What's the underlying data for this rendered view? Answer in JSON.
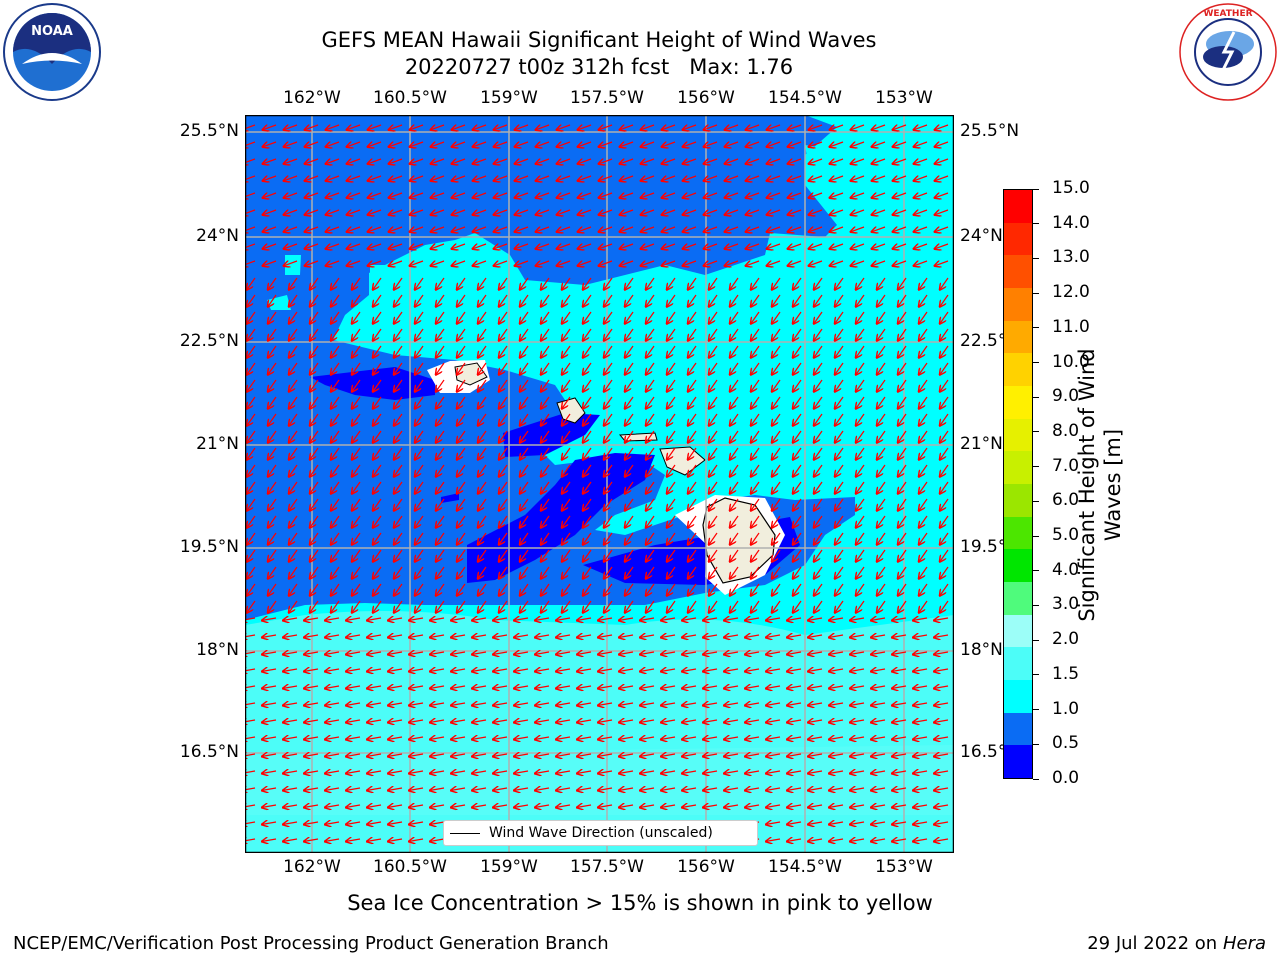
{
  "header": {
    "title_line1": "GEFS MEAN Hawaii Significant Height of Wind Waves",
    "title_line2": "20220727 t00z 312h fcst   Max: 1.76"
  },
  "logos": {
    "noaa_text": "NOAA",
    "noaa_ring": "NATIONAL OCEANIC AND ATMOSPHERIC ADMINISTRATION · U.S. DEPARTMENT OF COMMERCE",
    "nws_ring": "NATIONAL WEATHER SERVICE"
  },
  "map": {
    "lon_labels": [
      "162°W",
      "160.5°W",
      "159°W",
      "157.5°W",
      "156°W",
      "154.5°W",
      "153°W"
    ],
    "lat_labels": [
      "25.5°N",
      "24°N",
      "22.5°N",
      "21°N",
      "19.5°N",
      "18°N",
      "16.5°N"
    ],
    "legend_label": "Wind Wave Direction (unscaled)",
    "colors": {
      "band_0_0_5": "#0000ff",
      "band_0_5_1_0": "#0a6cf4",
      "band_1_0_1_5": "#00ffff",
      "band_1_5_2_0": "#4cfdf8",
      "land": "#f1eedd",
      "grid": "#b0b0b0",
      "arrow": "#ff0000"
    }
  },
  "colorbar": {
    "ticks": [
      "15.0",
      "14.0",
      "13.0",
      "12.0",
      "11.0",
      "10.0",
      "9.0",
      "8.0",
      "7.0",
      "6.0",
      "5.0",
      "4.0",
      "3.0",
      "2.0",
      "1.5",
      "1.0",
      "0.5",
      "0.0"
    ],
    "title_line1": "Significant Height of Wind",
    "title_line2": "Waves [m]",
    "colors_bottom_to_top": [
      "#0000ff",
      "#0a6cf4",
      "#00ffff",
      "#4cfdf8",
      "#9cfef8",
      "#4ffb7c",
      "#00e600",
      "#4ce600",
      "#9be600",
      "#c8f000",
      "#e6f000",
      "#fff000",
      "#ffd200",
      "#ffaa00",
      "#ff8000",
      "#ff5000",
      "#ff2800",
      "#ff0000"
    ]
  },
  "caption": "Sea Ice Concentration > 15% is shown in pink to yellow",
  "footer": {
    "left": "NCEP/EMC/Verification Post Processing Product Generation Branch",
    "right_prefix": "29 Jul 2022 on ",
    "right_italic": "Hera"
  }
}
